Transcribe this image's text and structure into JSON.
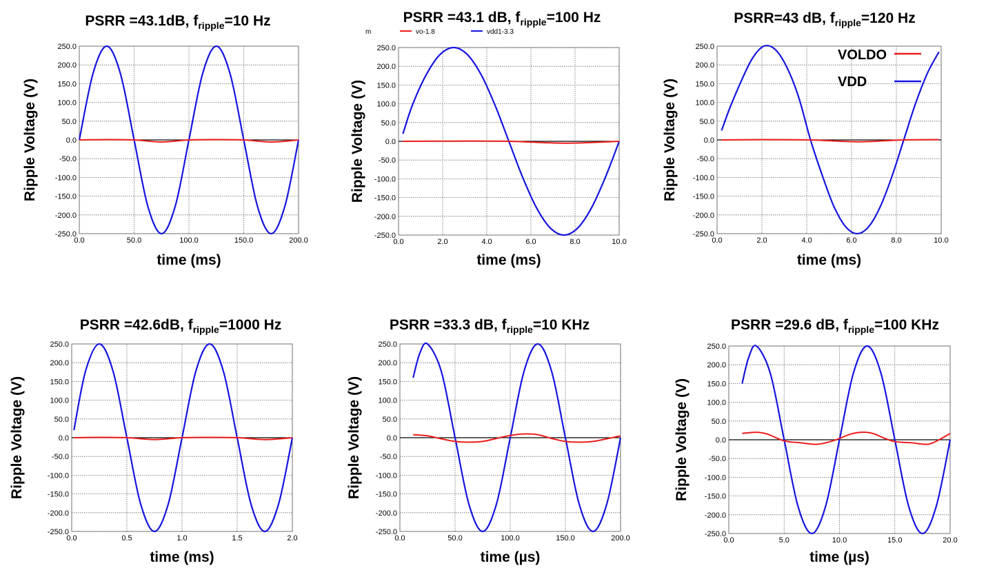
{
  "colors": {
    "voldo": "#ee1c1c",
    "vdd": "#1515e0",
    "zero_line": "#000000",
    "grid": "#666666"
  },
  "chart_data": [
    {
      "type": "line",
      "title_prefix": "PSRR =43.1dB, f",
      "title_sub": "ripple",
      "title_suffix": "=10 Hz",
      "xlabel": "time (ms)",
      "ylabel": "Ripple Voltage (V)",
      "xlim": [
        0,
        200
      ],
      "ylim": [
        -250,
        250
      ],
      "xticks": [
        "0.0",
        "50.0",
        "100.0",
        "150.0",
        "200.0"
      ],
      "yticks": [
        "250.0",
        "200.0",
        "150.0",
        "100.0",
        "50.0",
        "0.0",
        "-50.0",
        "-100.0",
        "-150.0",
        "-200.0",
        "-250.0"
      ],
      "grid": true,
      "series": [
        {
          "key": "vdd",
          "x": [
            0,
            12.5,
            25,
            37.5,
            50,
            62.5,
            75,
            87.5,
            100,
            112.5,
            125,
            137.5,
            150,
            162.5,
            175,
            187.5,
            200
          ],
          "y": [
            0,
            177,
            250,
            177,
            0,
            -177,
            -250,
            -177,
            0,
            177,
            250,
            177,
            0,
            -177,
            -250,
            -177,
            0
          ]
        },
        {
          "key": "voldo",
          "x": [
            0,
            25,
            50,
            75,
            100,
            125,
            150,
            175,
            200
          ],
          "y": [
            0,
            1,
            0,
            -5.5,
            0,
            1,
            0,
            -5.5,
            0
          ]
        }
      ]
    },
    {
      "type": "line",
      "title_prefix": "PSRR =43.1 dB, f",
      "title_sub": "ripple",
      "title_suffix": "=100 Hz",
      "xlabel": "time (ms)",
      "ylabel": "Ripple Voltage (V)",
      "xlim": [
        0,
        10
      ],
      "ylim": [
        -250,
        250
      ],
      "xticks": [
        "0.0",
        "2.0",
        "4.0",
        "6.0",
        "8.0",
        "10.0"
      ],
      "yticks": [
        "250.0",
        "200.0",
        "150.0",
        "100.0",
        "50.0",
        "0.0",
        "-50.0",
        "-100.0",
        "-150.0",
        "-200.0",
        "-250.0"
      ],
      "grid": true,
      "legend_small": [
        "m",
        "vo-1.8",
        "vdd1-3.3"
      ],
      "series": [
        {
          "key": "vdd",
          "x": [
            0.2,
            0.625,
            1.25,
            1.875,
            2.5,
            3.125,
            3.75,
            4.375,
            5,
            5.625,
            6.25,
            6.875,
            7.5,
            8.125,
            8.75,
            9.375,
            10
          ],
          "y": [
            20,
            96,
            177,
            231,
            250,
            231,
            177,
            96,
            0,
            -96,
            -177,
            -231,
            -250,
            -231,
            -177,
            -96,
            0
          ]
        },
        {
          "key": "voldo",
          "x": [
            0.2,
            2.5,
            5,
            7.5,
            10
          ],
          "y": [
            0,
            0.5,
            0,
            -5,
            0
          ]
        }
      ]
    },
    {
      "type": "line",
      "title_prefix": "PSRR=43 dB,  f",
      "title_sub": "ripple",
      "title_suffix": "=120 Hz",
      "xlabel": "time (ms)",
      "ylabel": "Ripple Voltage (V)",
      "xlim": [
        0,
        10
      ],
      "ylim": [
        -250,
        250
      ],
      "xticks": [
        "0.0",
        "2.0",
        "4.0",
        "6.0",
        "8.0",
        "10.0"
      ],
      "yticks": [
        "250.0",
        "200.0",
        "150.0",
        "100.0",
        "50.0",
        "0.0",
        "-50.0",
        "-100.0",
        "-150.0",
        "-200.0",
        "-250.0"
      ],
      "grid": true,
      "legend": [
        "VOLDO",
        "VDD"
      ],
      "series": [
        {
          "key": "vdd",
          "x": [
            0.2,
            0.56,
            1.04,
            1.56,
            2.08,
            2.6,
            3.12,
            3.64,
            4.17,
            4.69,
            5.21,
            5.73,
            6.25,
            6.77,
            7.29,
            7.81,
            8.33,
            8.85,
            9.38,
            9.9
          ],
          "y": [
            25,
            84,
            152,
            216,
            250,
            241,
            193,
            114,
            0,
            -94,
            -177,
            -231,
            -250,
            -231,
            -177,
            -96,
            0,
            96,
            177,
            235
          ]
        },
        {
          "key": "voldo",
          "x": [
            0.2,
            2.08,
            4.17,
            6.25,
            8.33,
            9.9
          ],
          "y": [
            0,
            1,
            0,
            -5,
            0,
            1
          ]
        }
      ]
    },
    {
      "type": "line",
      "title_prefix": "PSRR =42.6dB, f",
      "title_sub": "ripple",
      "title_suffix": "=1000 Hz",
      "xlabel": "time (ms)",
      "ylabel": "Ripple Voltage (V)",
      "xlim": [
        0,
        2
      ],
      "ylim": [
        -250,
        250
      ],
      "xticks": [
        "0.0",
        "0.5",
        "1.0",
        "1.5",
        "2.0"
      ],
      "yticks": [
        "250.0",
        "200.0",
        "150.0",
        "100.0",
        "50.0",
        "0.0",
        "-50.0",
        "-100.0",
        "-150.0",
        "-200.0",
        "-250.0"
      ],
      "grid": true,
      "series": [
        {
          "key": "vdd",
          "x": [
            0.02,
            0.125,
            0.25,
            0.375,
            0.5,
            0.625,
            0.75,
            0.875,
            1,
            1.125,
            1.25,
            1.375,
            1.5,
            1.625,
            1.75,
            1.875,
            2
          ],
          "y": [
            20,
            177,
            250,
            177,
            0,
            -177,
            -250,
            -177,
            0,
            177,
            250,
            177,
            0,
            -177,
            -250,
            -177,
            0
          ]
        },
        {
          "key": "voldo",
          "x": [
            0.02,
            0.25,
            0.5,
            0.75,
            1,
            1.25,
            1.5,
            1.75,
            2
          ],
          "y": [
            0,
            1,
            0,
            -5,
            0,
            1,
            0,
            -5,
            0
          ]
        }
      ]
    },
    {
      "type": "line",
      "title_prefix": "PSRR =33.3 dB, f",
      "title_sub": "ripple",
      "title_suffix": "=10 KHz",
      "xlabel": "time (µs)",
      "ylabel": "Ripple Voltage (V)",
      "xlim": [
        0,
        200
      ],
      "ylim": [
        -250,
        250
      ],
      "xticks": [
        "0.0",
        "50.0",
        "100.0",
        "150.0",
        "200.0"
      ],
      "yticks": [
        "250.0",
        "200.0",
        "150.0",
        "100.0",
        "50.0",
        "0.0",
        "-50.0",
        "-100.0",
        "-150.0",
        "-200.0",
        "-250.0"
      ],
      "grid": true,
      "series": [
        {
          "key": "vdd",
          "x": [
            12,
            18,
            25,
            37.5,
            50,
            62.5,
            75,
            87.5,
            100,
            112.5,
            125,
            137.5,
            150,
            162.5,
            175,
            187.5,
            200
          ],
          "y": [
            160,
            225,
            250,
            177,
            0,
            -177,
            -250,
            -177,
            0,
            177,
            250,
            177,
            0,
            -177,
            -250,
            -177,
            0
          ]
        },
        {
          "key": "voldo",
          "x": [
            12,
            25,
            37.5,
            50,
            62.5,
            75,
            87.5,
            100,
            112.5,
            125,
            137.5,
            150,
            162.5,
            175,
            187.5,
            200
          ],
          "y": [
            8,
            5,
            -3,
            -10,
            -12,
            -10,
            -2,
            6,
            10,
            8,
            -2,
            -10,
            -12,
            -10,
            -3,
            5
          ]
        }
      ]
    },
    {
      "type": "line",
      "title_prefix": "PSRR =29.6 dB, f",
      "title_sub": "ripple",
      "title_suffix": "=100 KHz",
      "xlabel": "time (µs)",
      "ylabel": "Ripple Voltage (V)",
      "xlim": [
        0,
        20
      ],
      "ylim": [
        -250,
        250
      ],
      "xticks": [
        "0.0",
        "5.0",
        "10.0",
        "15.0",
        "20.0"
      ],
      "yticks": [
        "250.0",
        "200.0",
        "150.0",
        "100.0",
        "50.0",
        "0.0",
        "-50.0",
        "-100.0",
        "-150.0",
        "-200.0",
        "-250.0"
      ],
      "grid": true,
      "series": [
        {
          "key": "vdd",
          "x": [
            1.2,
            1.8,
            2.5,
            3.75,
            5,
            6.25,
            7.5,
            8.75,
            10,
            11.25,
            12.5,
            13.75,
            15,
            16.25,
            17.5,
            18.75,
            20
          ],
          "y": [
            150,
            220,
            250,
            177,
            0,
            -177,
            -250,
            -177,
            0,
            177,
            250,
            177,
            0,
            -177,
            -250,
            -177,
            0
          ]
        },
        {
          "key": "voldo",
          "x": [
            1.2,
            2.5,
            3.5,
            5,
            6.5,
            8,
            9.5,
            11,
            12,
            13,
            14,
            15,
            16.5,
            18,
            19,
            20
          ],
          "y": [
            17,
            20,
            15,
            -3,
            -8,
            -12,
            -2,
            15,
            20,
            17,
            5,
            -5,
            -8,
            -12,
            0,
            17
          ]
        }
      ]
    }
  ]
}
